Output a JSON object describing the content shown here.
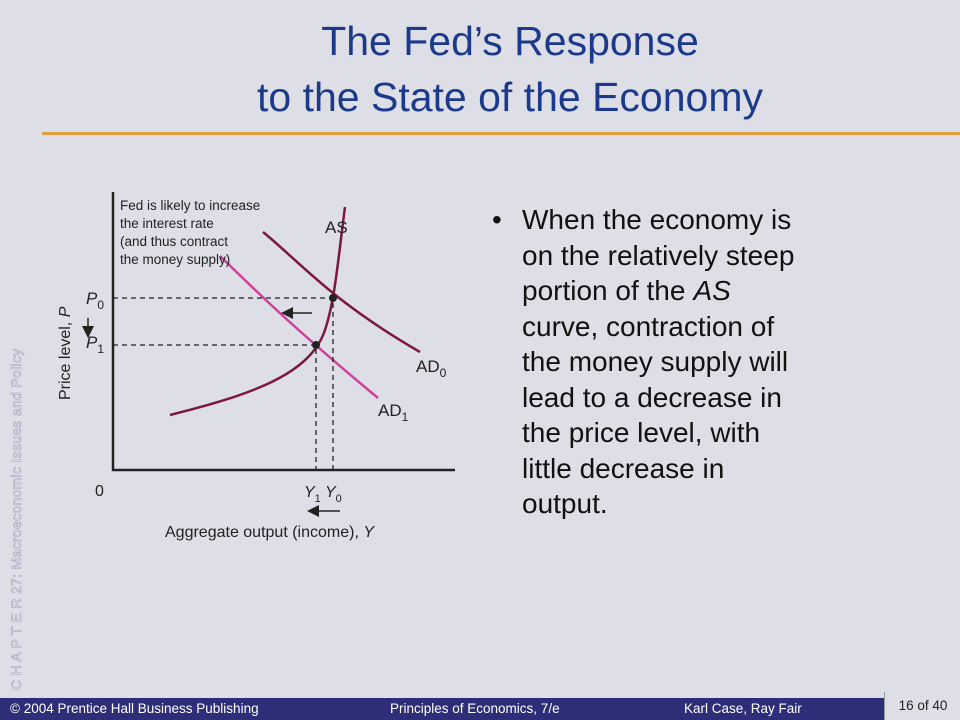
{
  "side_label": "C H A P T E R 27: Macroeconomic Issues and Policy",
  "title": [
    "The Fed’s Response",
    "to the State of the Economy"
  ],
  "bullet": {
    "lines": [
      "When the economy is",
      "on the relatively steep",
      "portion of the",
      "curve, contraction of",
      "the money supply will",
      "lead to a decrease in",
      "the price level, with",
      "little decrease in",
      "output."
    ],
    "italic_term": "AS"
  },
  "diagram": {
    "annotation": [
      "Fed is likely to increase",
      "the interest rate",
      "(and thus contract",
      "the money supply)"
    ],
    "as_label": "AS",
    "ad0": {
      "main": "AD",
      "sub": "0"
    },
    "ad1": {
      "main": "AD",
      "sub": "1"
    },
    "p0": {
      "main": "P",
      "sub": "0"
    },
    "p1": {
      "main": "P",
      "sub": "1"
    },
    "y1": {
      "main": "Y",
      "sub": "1"
    },
    "y0": {
      "main": "Y",
      "sub": "0"
    },
    "origin": "0",
    "y_axis_label": {
      "text": "Price level, ",
      "var": "P"
    },
    "x_axis_label": {
      "text": "Aggregate output (income), ",
      "var": "Y"
    }
  },
  "footer": {
    "publisher": "© 2004 Prentice Hall Business Publishing",
    "book": "Principles of Economics, 7/e",
    "authors": "Karl Case, Ray Fair",
    "page": "16 of 40"
  }
}
